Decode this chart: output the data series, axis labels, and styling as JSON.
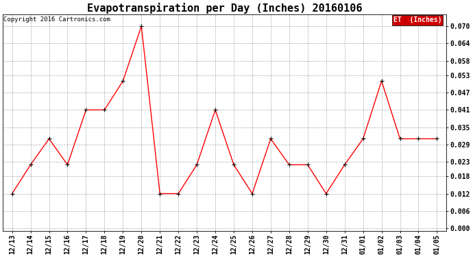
{
  "title": "Evapotranspiration per Day (Inches) 20160106",
  "copyright_text": "Copyright 2016 Cartronics.com",
  "legend_label": "ET  (Inches)",
  "legend_bg": "#cc0000",
  "legend_text_color": "#ffffff",
  "x_labels": [
    "12/13",
    "12/14",
    "12/15",
    "12/16",
    "12/17",
    "12/18",
    "12/19",
    "12/20",
    "12/21",
    "12/22",
    "12/23",
    "12/24",
    "12/25",
    "12/26",
    "12/27",
    "12/28",
    "12/29",
    "12/30",
    "12/31",
    "01/01",
    "01/02",
    "01/03",
    "01/04",
    "01/05"
  ],
  "y_values": [
    0.012,
    0.022,
    0.031,
    0.022,
    0.041,
    0.041,
    0.051,
    0.07,
    0.012,
    0.012,
    0.022,
    0.041,
    0.022,
    0.012,
    0.031,
    0.022,
    0.022,
    0.012,
    0.022,
    0.031,
    0.051,
    0.031,
    0.031,
    0.031
  ],
  "line_color": "#ff0000",
  "marker_color": "#000000",
  "ylim": [
    -0.001,
    0.074
  ],
  "yticks": [
    0.0,
    0.006,
    0.012,
    0.018,
    0.023,
    0.029,
    0.035,
    0.041,
    0.047,
    0.053,
    0.058,
    0.064,
    0.07
  ],
  "bg_color": "#ffffff",
  "grid_color": "#aaaaaa",
  "title_fontsize": 11,
  "tick_fontsize": 7,
  "copyright_fontsize": 6.5,
  "legend_fontsize": 7
}
